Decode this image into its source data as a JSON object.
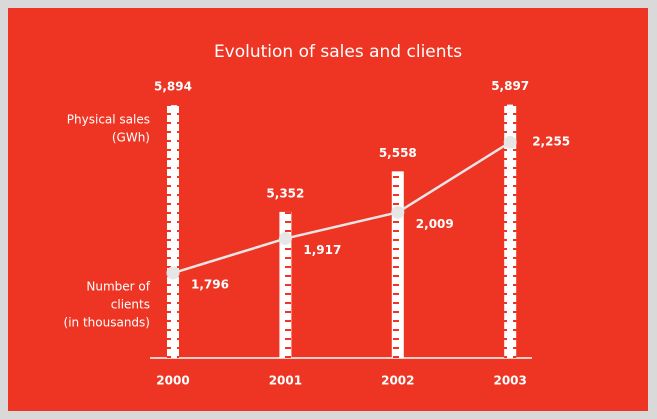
{
  "chart_data": {
    "type": "bar-line",
    "title": "Evolution of sales and clients",
    "categories": [
      "2000",
      "2001",
      "2002",
      "2003"
    ],
    "series": [
      {
        "name": "Physical sales (GWh)",
        "name_lines": [
          "Physical sales",
          "(GWh)"
        ],
        "type": "bar",
        "color": "#ffffff",
        "values": [
          5894,
          5352,
          5558,
          5897
        ],
        "value_labels": [
          "5,894",
          "5,352",
          "5,558",
          "5,897"
        ]
      },
      {
        "name": "Number of clients (in thousands)",
        "name_lines": [
          "Number of",
          "clients",
          "(in thousands)"
        ],
        "type": "line",
        "axis": "y2",
        "color": "#e6e6e6",
        "values": [
          1796,
          1917,
          2009,
          2255
        ],
        "value_labels": [
          "1,796",
          "1,917",
          "2,009",
          "2,255"
        ]
      }
    ],
    "ylim": [
      4610,
      5900
    ],
    "y2lim": [
      1498,
      2389
    ]
  }
}
